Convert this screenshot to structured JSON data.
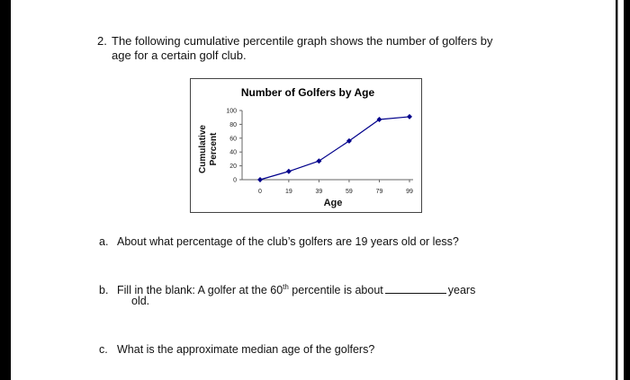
{
  "question": {
    "number": "2.",
    "text": "The following cumulative percentile graph shows the number of golfers by age for a certain golf club."
  },
  "chart_data": {
    "type": "line",
    "title": "Number of Golfers by Age",
    "xlabel": "Age",
    "ylabel_line1": "Cumulative",
    "ylabel_line2": "Percent",
    "x_ticks": [
      "0",
      "19",
      "39",
      "59",
      "79",
      "99"
    ],
    "y_ticks": [
      "0",
      "20",
      "40",
      "60",
      "80",
      "100"
    ],
    "xlim": [
      0,
      99
    ],
    "ylim": [
      0,
      100
    ],
    "series": [
      {
        "x": [
          0,
          19,
          39,
          59,
          79,
          99
        ],
        "y": [
          0,
          12,
          27,
          56,
          87,
          91
        ],
        "color": "#00008b"
      }
    ]
  },
  "parts": {
    "a": {
      "letter": "a.",
      "text": "About what percentage of the club’s golfers are 19 years old or less?"
    },
    "b": {
      "letter": "b.",
      "text_before": "Fill in the blank: A golfer at the 60",
      "superscript": "th",
      "text_after": " percentile is about",
      "units": "years",
      "line2": "old."
    },
    "c": {
      "letter": "c.",
      "text": "What is the approximate median age of the golfers?"
    }
  }
}
